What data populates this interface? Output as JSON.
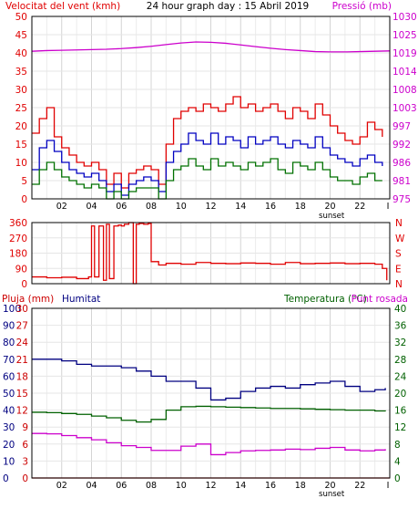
{
  "header": {
    "left_label": "Velocitat del vent (kmh)",
    "title": "24 hour graph day : 15 Abril 2019",
    "right_label": "Pressió (mb)"
  },
  "panel3_header": {
    "rain_label": "Pluja (mm)",
    "humidity_label": "Humitat",
    "temp_label": "Temperatura (°C)",
    "dew_label": "Punt rosada"
  },
  "x_ticks": [
    "02",
    "04",
    "06",
    "08",
    "10",
    "12",
    "14",
    "16",
    "18",
    "20",
    "22",
    "I"
  ],
  "sunset_label": "sunset",
  "colors": {
    "wind_gust": "#e00000",
    "wind_avg": "#0000c0",
    "wind_low": "#007000",
    "pressure": "#cc00cc",
    "direction": "#e00000",
    "humidity": "#000080",
    "rain": "#cc0000",
    "temperature": "#006000",
    "dewpoint": "#cc00cc"
  },
  "chart_data": [
    {
      "type": "line",
      "name": "wind_pressure",
      "x_range": [
        0,
        24
      ],
      "y_left": {
        "label": "Velocitat del vent (kmh)",
        "range": [
          0,
          50
        ],
        "ticks": [
          "0",
          "5",
          "10",
          "15",
          "20",
          "25",
          "30",
          "35",
          "40",
          "45",
          "50"
        ]
      },
      "y_right": {
        "label": "Pressió (mb)",
        "range": [
          975,
          1030
        ],
        "ticks": [
          "975",
          "981",
          "986",
          "992",
          "997",
          "1003",
          "1008",
          "1014",
          "1019",
          "1025",
          "1030"
        ]
      },
      "series": [
        {
          "key": "gust",
          "axis": "left",
          "x": [
            0,
            0.5,
            1,
            1.5,
            2,
            2.5,
            3,
            3.5,
            4,
            4.5,
            5,
            5.5,
            6,
            6.5,
            7,
            7.5,
            8,
            8.5,
            9,
            9.5,
            10,
            10.5,
            11,
            11.5,
            12,
            12.5,
            13,
            13.5,
            14,
            14.5,
            15,
            15.5,
            16,
            16.5,
            17,
            17.5,
            18,
            18.5,
            19,
            19.5,
            20,
            20.5,
            21,
            21.5,
            22,
            22.5,
            23,
            23.5
          ],
          "y": [
            18,
            22,
            25,
            17,
            14,
            12,
            10,
            9,
            10,
            8,
            4,
            7,
            3,
            7,
            8,
            9,
            8,
            4,
            15,
            22,
            24,
            25,
            24,
            26,
            25,
            24,
            26,
            28,
            25,
            26,
            24,
            25,
            26,
            24,
            22,
            25,
            24,
            22,
            26,
            23,
            20,
            18,
            16,
            15,
            17,
            21,
            19,
            17
          ]
        },
        {
          "key": "average",
          "axis": "left",
          "x": [
            0,
            0.5,
            1,
            1.5,
            2,
            2.5,
            3,
            3.5,
            4,
            4.5,
            5,
            5.5,
            6,
            6.5,
            7,
            7.5,
            8,
            8.5,
            9,
            9.5,
            10,
            10.5,
            11,
            11.5,
            12,
            12.5,
            13,
            13.5,
            14,
            14.5,
            15,
            15.5,
            16,
            16.5,
            17,
            17.5,
            18,
            18.5,
            19,
            19.5,
            20,
            20.5,
            21,
            21.5,
            22,
            22.5,
            23,
            23.5
          ],
          "y": [
            8,
            14,
            16,
            13,
            10,
            8,
            7,
            6,
            7,
            5,
            2,
            4,
            1,
            4,
            5,
            6,
            5,
            2,
            10,
            13,
            15,
            18,
            16,
            15,
            18,
            15,
            17,
            16,
            14,
            17,
            15,
            16,
            17,
            15,
            14,
            16,
            15,
            14,
            17,
            14,
            12,
            11,
            10,
            9,
            11,
            12,
            10,
            9
          ]
        },
        {
          "key": "low",
          "axis": "left",
          "x": [
            0,
            0.5,
            1,
            1.5,
            2,
            2.5,
            3,
            3.5,
            4,
            4.5,
            5,
            5.5,
            6,
            6.5,
            7,
            7.5,
            8,
            8.5,
            9,
            9.5,
            10,
            10.5,
            11,
            11.5,
            12,
            12.5,
            13,
            13.5,
            14,
            14.5,
            15,
            15.5,
            16,
            16.5,
            17,
            17.5,
            18,
            18.5,
            19,
            19.5,
            20,
            20.5,
            21,
            21.5,
            22,
            22.5,
            23,
            23.5
          ],
          "y": [
            4,
            8,
            10,
            8,
            6,
            5,
            4,
            3,
            4,
            3,
            0,
            2,
            0,
            2,
            3,
            3,
            3,
            0,
            5,
            8,
            9,
            11,
            9,
            8,
            11,
            9,
            10,
            9,
            8,
            10,
            9,
            10,
            11,
            8,
            7,
            10,
            9,
            8,
            10,
            8,
            6,
            5,
            5,
            4,
            6,
            7,
            5,
            5
          ]
        },
        {
          "key": "pressure",
          "axis": "right",
          "x": [
            0,
            1,
            2,
            3,
            4,
            5,
            6,
            7,
            8,
            9,
            10,
            11,
            12,
            13,
            14,
            15,
            16,
            17,
            18,
            19,
            20,
            21,
            22,
            23,
            24
          ],
          "y": [
            1019.5,
            1019.7,
            1019.8,
            1019.9,
            1020,
            1020.1,
            1020.3,
            1020.6,
            1021,
            1021.5,
            1022,
            1022.3,
            1022.2,
            1021.9,
            1021.4,
            1020.9,
            1020.4,
            1020,
            1019.7,
            1019.4,
            1019.3,
            1019.3,
            1019.4,
            1019.5,
            1019.6
          ]
        }
      ]
    },
    {
      "type": "line",
      "name": "wind_direction",
      "x_range": [
        0,
        24
      ],
      "y_left": {
        "range": [
          0,
          360
        ],
        "ticks": [
          "0",
          "90",
          "180",
          "270",
          "360"
        ]
      },
      "y_right": {
        "ticks": [
          "N",
          "E",
          "S",
          "W",
          "N"
        ]
      },
      "series": [
        {
          "key": "direction",
          "x": [
            0,
            1,
            2,
            3,
            3.8,
            4,
            4.2,
            4.5,
            4.8,
            5,
            5.2,
            5.5,
            5.8,
            6,
            6.2,
            6.5,
            6.8,
            7,
            7.2,
            7.5,
            7.8,
            8,
            8.5,
            9,
            10,
            11,
            12,
            13,
            14,
            15,
            16,
            17,
            18,
            19,
            20,
            21,
            22,
            23,
            23.5,
            23.8
          ],
          "y": [
            40,
            35,
            38,
            30,
            40,
            340,
            40,
            340,
            20,
            350,
            30,
            340,
            345,
            340,
            350,
            360,
            0,
            350,
            355,
            350,
            355,
            130,
            110,
            120,
            115,
            125,
            120,
            118,
            122,
            120,
            115,
            125,
            118,
            120,
            122,
            118,
            120,
            115,
            90,
            20
          ]
        }
      ]
    },
    {
      "type": "line",
      "name": "humidity_temperature",
      "x_range": [
        0,
        24
      ],
      "y_left_humidity": {
        "label": "Humitat",
        "range": [
          0,
          100
        ],
        "ticks": [
          "0",
          "10",
          "20",
          "30",
          "40",
          "50",
          "60",
          "70",
          "80",
          "90",
          "100"
        ]
      },
      "y_left_rain": {
        "label": "Pluja (mm)",
        "range": [
          0,
          30
        ],
        "ticks": [
          "0",
          "3",
          "6",
          "9",
          "12",
          "15",
          "18",
          "21",
          "24",
          "27",
          "30"
        ]
      },
      "y_right": {
        "label": "Temperatura (°C)",
        "range": [
          0,
          40
        ],
        "ticks": [
          "0",
          "4",
          "8",
          "12",
          "16",
          "20",
          "24",
          "28",
          "32",
          "36",
          "40"
        ]
      },
      "series": [
        {
          "key": "humidity",
          "axis": "humidity",
          "x": [
            0,
            1,
            2,
            3,
            4,
            5,
            6,
            7,
            8,
            9,
            10,
            11,
            12,
            13,
            14,
            15,
            16,
            17,
            18,
            19,
            20,
            21,
            22,
            23,
            23.7
          ],
          "y": [
            70,
            70,
            69,
            67,
            66,
            66,
            65,
            63,
            60,
            57,
            57,
            53,
            46,
            47,
            51,
            53,
            54,
            53,
            55,
            56,
            57,
            54,
            51,
            52,
            53
          ]
        },
        {
          "key": "rain",
          "axis": "rain",
          "x": [
            0,
            24
          ],
          "y": [
            0,
            0
          ]
        },
        {
          "key": "temperature",
          "axis": "right",
          "x": [
            0,
            1,
            2,
            3,
            4,
            5,
            6,
            7,
            8,
            9,
            10,
            11,
            12,
            13,
            14,
            15,
            16,
            17,
            18,
            19,
            20,
            21,
            22,
            23,
            23.7
          ],
          "y": [
            15.5,
            15.4,
            15.2,
            15,
            14.6,
            14.2,
            13.6,
            13.2,
            13.8,
            16,
            16.8,
            16.9,
            16.8,
            16.7,
            16.6,
            16.5,
            16.4,
            16.4,
            16.3,
            16.2,
            16.1,
            16,
            16,
            15.8,
            15.7
          ]
        },
        {
          "key": "dewpoint",
          "axis": "right",
          "x": [
            0,
            1,
            2,
            3,
            4,
            5,
            6,
            7,
            8,
            9,
            10,
            11,
            12,
            13,
            14,
            15,
            16,
            17,
            18,
            19,
            20,
            21,
            22,
            23,
            23.7
          ],
          "y": [
            10.5,
            10.4,
            10,
            9.5,
            9,
            8.3,
            7.6,
            7.2,
            6.5,
            6.5,
            7.5,
            8,
            5.5,
            6,
            6.4,
            6.5,
            6.6,
            6.8,
            6.7,
            7,
            7.2,
            6.6,
            6.4,
            6.6,
            6.8
          ]
        }
      ]
    }
  ]
}
